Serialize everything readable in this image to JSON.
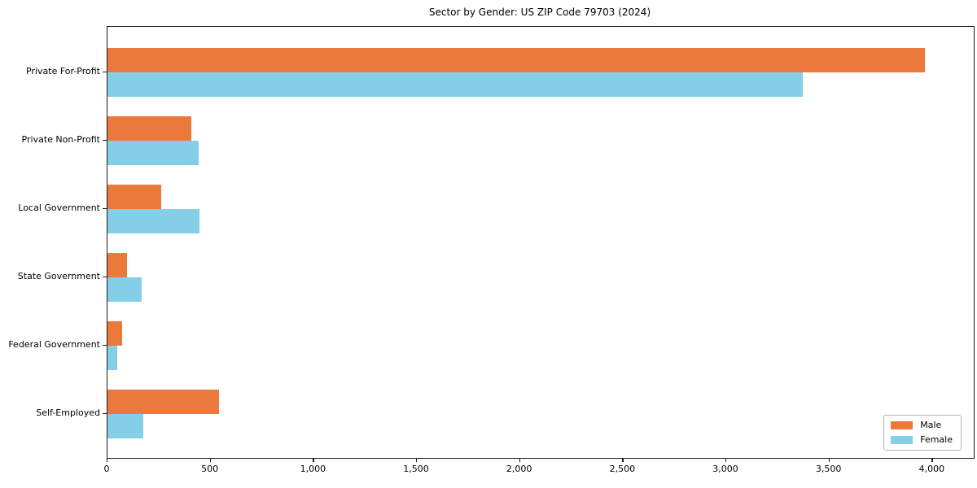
{
  "title": "Sector by Gender: US ZIP Code 79703 (2024)",
  "chart_data": {
    "type": "bar",
    "orientation": "horizontal",
    "title": "Sector by Gender: US ZIP Code 79703 (2024)",
    "categories": [
      "Private For-Profit",
      "Private Non-Profit",
      "Local Government",
      "State Government",
      "Federal Government",
      "Self-Employed"
    ],
    "series": [
      {
        "name": "Male",
        "color": "#ec793c",
        "values": [
          3963,
          408,
          260,
          95,
          72,
          539
        ]
      },
      {
        "name": "Female",
        "color": "#85cee8",
        "values": [
          3370,
          442,
          446,
          165,
          49,
          173
        ]
      }
    ],
    "xlabel": "",
    "ylabel": "",
    "xlim": [
      0,
      4200
    ],
    "x_ticks": [
      0,
      500,
      1000,
      1500,
      2000,
      2500,
      3000,
      3500,
      4000
    ],
    "x_tick_labels": [
      "0",
      "500",
      "1,000",
      "1,500",
      "2,000",
      "2,500",
      "3,000",
      "3,500",
      "4,000"
    ],
    "grid": false,
    "background": "#ffffff",
    "legend_position": "lower right"
  }
}
